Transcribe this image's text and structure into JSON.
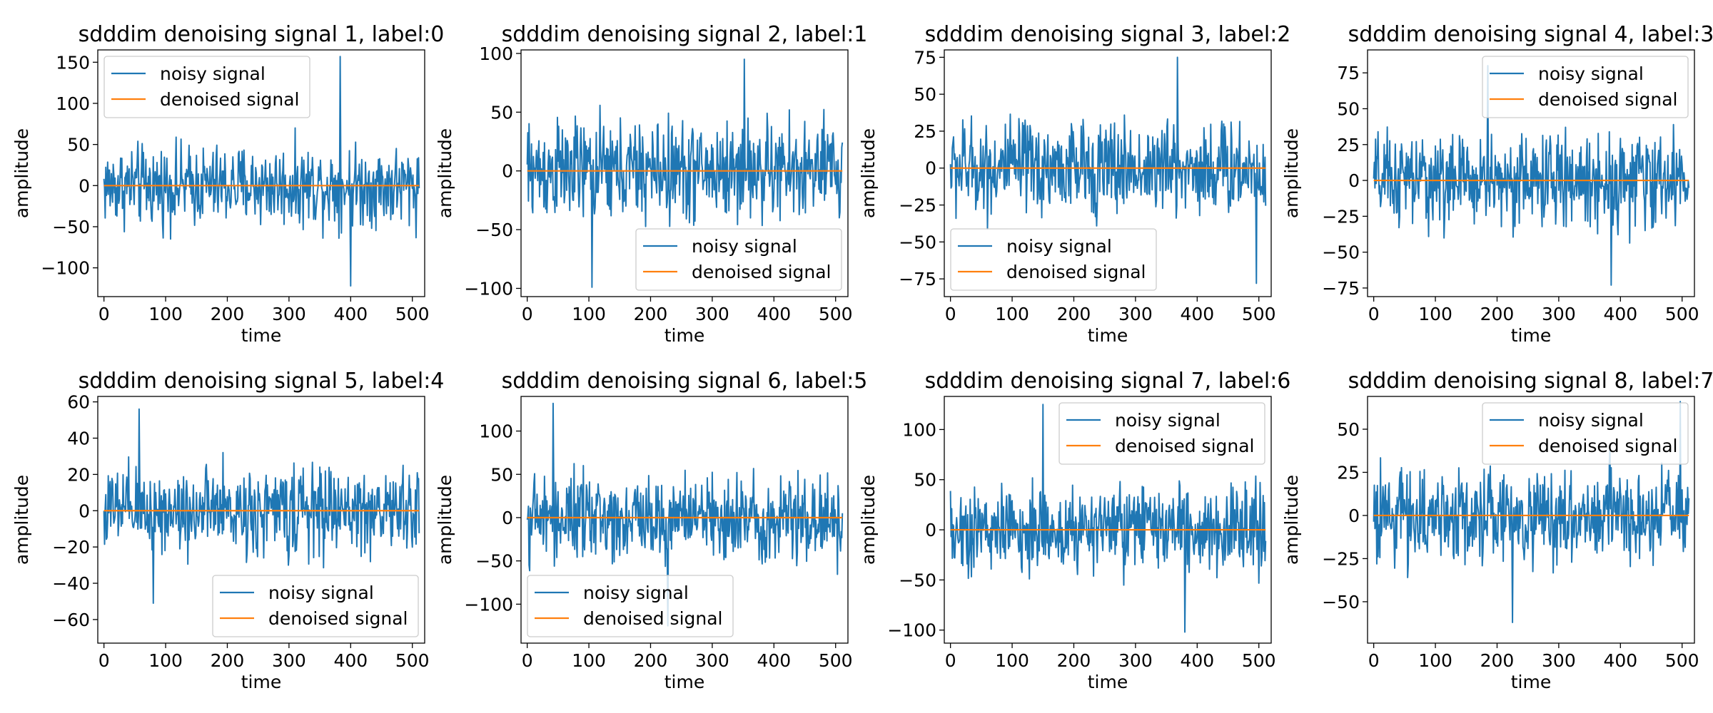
{
  "colors": {
    "noisy": "#1f77b4",
    "denoised": "#ff7f0e"
  },
  "chart_data": [
    {
      "type": "line",
      "title": "sdddim denoising signal 1, label:0",
      "xlabel": "time",
      "ylabel": "amplitude",
      "xlim": [
        -10,
        520
      ],
      "ylim": [
        -135,
        165
      ],
      "xticks": [
        0,
        100,
        200,
        300,
        400,
        500
      ],
      "yticks": [
        -100,
        -50,
        0,
        50,
        100,
        150
      ],
      "ytick_labels": [
        "−100",
        "−50",
        "0",
        "50",
        "100",
        "150"
      ],
      "legend": "upper left",
      "noisy_amplitude": 45,
      "series": [
        {
          "name": "noisy signal",
          "x_range": [
            0,
            511
          ],
          "y_min": -122,
          "y_max": 157,
          "key_points": [
            [
              383,
              157
            ],
            [
              400,
              -122
            ]
          ]
        },
        {
          "name": "denoised signal",
          "x_range": [
            0,
            511
          ],
          "y": 0
        }
      ]
    },
    {
      "type": "line",
      "title": "sdddim denoising signal 2, label:1",
      "xlabel": "time",
      "ylabel": "amplitude",
      "xlim": [
        -10,
        520
      ],
      "ylim": [
        -107,
        103
      ],
      "xticks": [
        0,
        100,
        200,
        300,
        400,
        500
      ],
      "yticks": [
        -100,
        -50,
        0,
        50,
        100
      ],
      "ytick_labels": [
        "−100",
        "−50",
        "0",
        "50",
        "100"
      ],
      "legend": "lower right",
      "noisy_amplitude": 40,
      "series": [
        {
          "name": "noisy signal",
          "x_range": [
            0,
            511
          ],
          "y_min": -99,
          "y_max": 95,
          "key_points": [
            [
              105,
              -99
            ],
            [
              352,
              95
            ]
          ]
        },
        {
          "name": "denoised signal",
          "x_range": [
            0,
            511
          ],
          "y": 0
        }
      ]
    },
    {
      "type": "line",
      "title": "sdddim denoising signal 3, label:2",
      "xlabel": "time",
      "ylabel": "amplitude",
      "xlim": [
        -10,
        520
      ],
      "ylim": [
        -87,
        80
      ],
      "xticks": [
        0,
        100,
        200,
        300,
        400,
        500
      ],
      "yticks": [
        -75,
        -50,
        -25,
        0,
        25,
        50,
        75
      ],
      "ytick_labels": [
        "−75",
        "−50",
        "−25",
        "0",
        "25",
        "50",
        "75"
      ],
      "legend": "lower left",
      "noisy_amplitude": 30,
      "series": [
        {
          "name": "noisy signal",
          "x_range": [
            0,
            511
          ],
          "y_min": -78,
          "y_max": 75,
          "key_points": [
            [
              368,
              75
            ],
            [
              496,
              -78
            ]
          ]
        },
        {
          "name": "denoised signal",
          "x_range": [
            0,
            511
          ],
          "y": 0
        }
      ]
    },
    {
      "type": "line",
      "title": "sdddim denoising signal 4, label:3",
      "xlabel": "time",
      "ylabel": "amplitude",
      "xlim": [
        -10,
        520
      ],
      "ylim": [
        -81,
        91
      ],
      "xticks": [
        0,
        100,
        200,
        300,
        400,
        500
      ],
      "yticks": [
        -75,
        -50,
        -25,
        0,
        25,
        50,
        75
      ],
      "ytick_labels": [
        "−75",
        "−50",
        "−25",
        "0",
        "25",
        "50",
        "75"
      ],
      "legend": "upper right",
      "noisy_amplitude": 30,
      "series": [
        {
          "name": "noisy signal",
          "x_range": [
            0,
            511
          ],
          "y_min": -73,
          "y_max": 80,
          "key_points": [
            [
              185,
              80
            ],
            [
              385,
              -73
            ]
          ]
        },
        {
          "name": "denoised signal",
          "x_range": [
            0,
            511
          ],
          "y": 0
        }
      ]
    },
    {
      "type": "line",
      "title": "sdddim denoising signal 5, label:4",
      "xlabel": "time",
      "ylabel": "amplitude",
      "xlim": [
        -10,
        520
      ],
      "ylim": [
        -73,
        63
      ],
      "xticks": [
        0,
        100,
        200,
        300,
        400,
        500
      ],
      "yticks": [
        -60,
        -40,
        -20,
        0,
        20,
        40,
        60
      ],
      "ytick_labels": [
        "−60",
        "−40",
        "−20",
        "0",
        "20",
        "40",
        "60"
      ],
      "legend": "lower right",
      "noisy_amplitude": 22,
      "series": [
        {
          "name": "noisy signal",
          "x_range": [
            0,
            511
          ],
          "y_min": -51,
          "y_max": 56,
          "key_points": [
            [
              57,
              56
            ],
            [
              80,
              -51
            ]
          ]
        },
        {
          "name": "denoised signal",
          "x_range": [
            0,
            511
          ],
          "y": 0
        }
      ]
    },
    {
      "type": "line",
      "title": "sdddim denoising signal 6, label:5",
      "xlabel": "time",
      "ylabel": "amplitude",
      "xlim": [
        -10,
        520
      ],
      "ylim": [
        -145,
        140
      ],
      "xticks": [
        0,
        100,
        200,
        300,
        400,
        500
      ],
      "yticks": [
        -100,
        -50,
        0,
        50,
        100
      ],
      "ytick_labels": [
        "−100",
        "−50",
        "0",
        "50",
        "100"
      ],
      "legend": "lower left",
      "noisy_amplitude": 45,
      "series": [
        {
          "name": "noisy signal",
          "x_range": [
            0,
            511
          ],
          "y_min": -125,
          "y_max": 132,
          "key_points": [
            [
              42,
              132
            ],
            [
              228,
              -125
            ]
          ]
        },
        {
          "name": "denoised signal",
          "x_range": [
            0,
            511
          ],
          "y": 0
        }
      ]
    },
    {
      "type": "line",
      "title": "sdddim denoising signal 7, label:6",
      "xlabel": "time",
      "ylabel": "amplitude",
      "xlim": [
        -10,
        520
      ],
      "ylim": [
        -113,
        133
      ],
      "xticks": [
        0,
        100,
        200,
        300,
        400,
        500
      ],
      "yticks": [
        -100,
        -50,
        0,
        50,
        100
      ],
      "ytick_labels": [
        "−100",
        "−50",
        "0",
        "50",
        "100"
      ],
      "legend": "upper right",
      "noisy_amplitude": 40,
      "series": [
        {
          "name": "noisy signal",
          "x_range": [
            0,
            511
          ],
          "y_min": -102,
          "y_max": 125,
          "key_points": [
            [
              150,
              125
            ],
            [
              380,
              -102
            ]
          ]
        },
        {
          "name": "denoised signal",
          "x_range": [
            0,
            511
          ],
          "y": 0
        }
      ]
    },
    {
      "type": "line",
      "title": "sdddim denoising signal 8, label:7",
      "xlabel": "time",
      "ylabel": "amplitude",
      "xlim": [
        -10,
        520
      ],
      "ylim": [
        -74,
        69
      ],
      "xticks": [
        0,
        100,
        200,
        300,
        400,
        500
      ],
      "yticks": [
        -50,
        -25,
        0,
        25,
        50
      ],
      "ytick_labels": [
        "−50",
        "−25",
        "0",
        "25",
        "50"
      ],
      "legend": "upper right",
      "noisy_amplitude": 25,
      "series": [
        {
          "name": "noisy signal",
          "x_range": [
            0,
            511
          ],
          "y_min": -62,
          "y_max": 66,
          "key_points": [
            [
              497,
              66
            ],
            [
              225,
              -62
            ]
          ]
        },
        {
          "name": "denoised signal",
          "x_range": [
            0,
            511
          ],
          "y": 0
        }
      ]
    }
  ]
}
